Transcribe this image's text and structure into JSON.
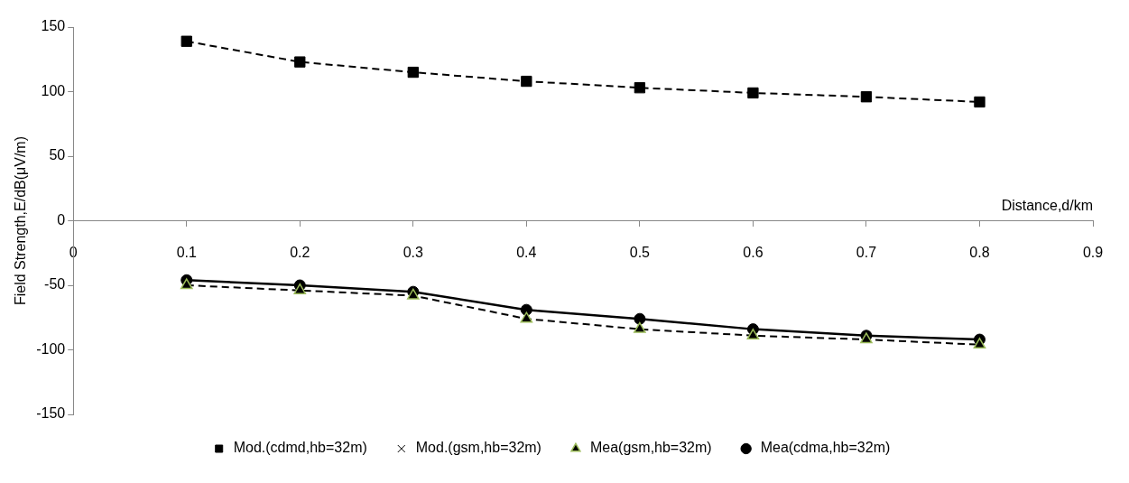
{
  "chart_data": {
    "type": "line",
    "xlabel": "Distance,d/km",
    "ylabel": "Field Strength,E/dB(μV/m)",
    "x": [
      0.1,
      0.2,
      0.3,
      0.4,
      0.5,
      0.6,
      0.7,
      0.8
    ],
    "xlim": [
      0,
      0.9
    ],
    "xticks": [
      0,
      0.1,
      0.2,
      0.3,
      0.4,
      0.5,
      0.6,
      0.7,
      0.8,
      0.9
    ],
    "ylim": [
      -150,
      150
    ],
    "yticks": [
      -150,
      -100,
      -50,
      0,
      50,
      100,
      150
    ],
    "grid": false,
    "legend": "bottom",
    "series": [
      {
        "name": "Mod.(cdmd,hb=32m)",
        "color": "#000000",
        "marker": "square",
        "line_style": "dashed",
        "values": [
          139,
          123,
          115,
          108,
          103,
          99,
          96,
          92
        ]
      },
      {
        "name": "Mod.(gsm,hb=32m)",
        "color": "#000000",
        "marker": "cross",
        "line_style": "dotted",
        "values": [
          null,
          null,
          null,
          null,
          null,
          null,
          null,
          null
        ]
      },
      {
        "name": "Mea(gsm,hb=32m)",
        "color": "#000000",
        "marker": "triangle",
        "line_style": "dashed",
        "values": [
          -50,
          -54,
          -58,
          -76,
          -84,
          -89,
          -92,
          -96
        ]
      },
      {
        "name": "Mea(cdma,hb=32m)",
        "color": "#000000",
        "marker": "circle",
        "line_style": "solid",
        "values": [
          -46,
          -50,
          -55,
          -69,
          -76,
          -84,
          -89,
          -92
        ]
      }
    ]
  }
}
